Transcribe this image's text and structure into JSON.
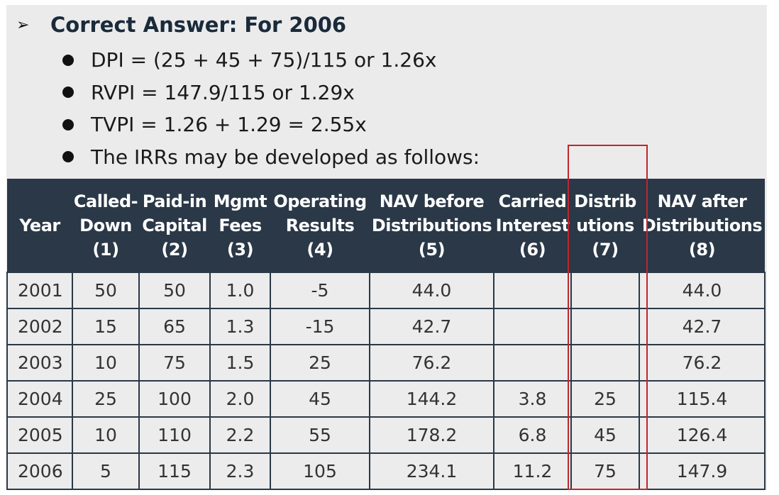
{
  "heading": {
    "arrow": "➢",
    "text": "Correct Answer: For 2006"
  },
  "bullets": [
    "DPI = (25 + 45 + 75)/115 or 1.26x",
    "RVPI = 147.9/115 or 1.29x",
    "TVPI = 1.26 + 1.29 = 2.55x",
    "The IRRs may be developed as follows:"
  ],
  "table": {
    "headers": [
      [
        "",
        "Year",
        ""
      ],
      [
        "Called-",
        "Down",
        "(1)"
      ],
      [
        "Paid-in",
        "Capital",
        "(2)"
      ],
      [
        "Mgmt",
        "Fees",
        "(3)"
      ],
      [
        "Operating",
        "Results",
        "(4)"
      ],
      [
        "NAV before",
        "Distributions",
        "(5)"
      ],
      [
        "Carried",
        "Interest",
        "(6)"
      ],
      [
        "Distrib",
        "utions",
        "(7)"
      ],
      [
        "NAV after",
        "Distributions",
        "(8)"
      ]
    ],
    "rows": [
      [
        "2001",
        "50",
        "50",
        "1.0",
        "-5",
        "44.0",
        "",
        "",
        "44.0"
      ],
      [
        "2002",
        "15",
        "65",
        "1.3",
        "-15",
        "42.7",
        "",
        "",
        "42.7"
      ],
      [
        "2003",
        "10",
        "75",
        "1.5",
        "25",
        "76.2",
        "",
        "",
        "76.2"
      ],
      [
        "2004",
        "25",
        "100",
        "2.0",
        "45",
        "144.2",
        "3.8",
        "25",
        "115.4"
      ],
      [
        "2005",
        "10",
        "110",
        "2.2",
        "55",
        "178.2",
        "6.8",
        "45",
        "126.4"
      ],
      [
        "2006",
        "5",
        "115",
        "2.3",
        "105",
        "234.1",
        "11.2",
        "75",
        "147.9"
      ]
    ]
  },
  "colors": {
    "header_bg": "#2a3847",
    "highlight_border": "#c0262d",
    "panel_bg": "#ebebec"
  }
}
